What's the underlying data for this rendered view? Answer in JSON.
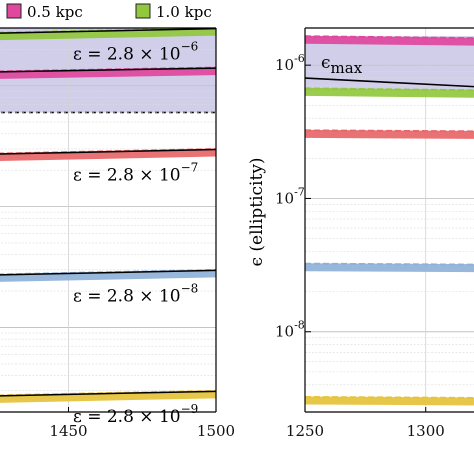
{
  "legend": {
    "items": [
      {
        "label": "0.5 kpc",
        "color": "#e0479e"
      },
      {
        "label": "1.0 kpc",
        "color": "#92c83e"
      }
    ]
  },
  "chart_data": [
    {
      "type": "line",
      "panel": "left",
      "title": "",
      "xlabel": "",
      "ylabel": "",
      "xlim": [
        1420,
        1500
      ],
      "x_ticks": [
        1450,
        1500
      ],
      "x_tick_labels": [
        "1450",
        "1500"
      ],
      "y_scale": "log",
      "ylim": [
        2e-09,
        3e-06
      ],
      "grid": true,
      "band": {
        "from": 6e-07,
        "to": 3e-06,
        "color": "#c9c6e6",
        "lower_edge_style": "dashed"
      },
      "series": [
        {
          "color": "#92c83e",
          "x": [
            1420,
            1500
          ],
          "y": [
            2.55e-06,
            2.8e-06
          ]
        },
        {
          "color": "#e0479e",
          "x": [
            1420,
            1500
          ],
          "y": [
            1.22e-06,
            1.32e-06
          ]
        },
        {
          "color": "#e8676a",
          "x": [
            1420,
            1500
          ],
          "y": [
            2.55e-07,
            2.8e-07
          ]
        },
        {
          "color": "#8fb1d8",
          "x": [
            1420,
            1500
          ],
          "y": [
            2.55e-08,
            2.8e-08
          ]
        },
        {
          "color": "#e6c33a",
          "x": [
            1420,
            1500
          ],
          "y": [
            2.55e-09,
            2.8e-09
          ]
        }
      ],
      "annotations": [
        {
          "base": "ε = 2.8 × 10",
          "exp": "−6"
        },
        {
          "base": "ε = 2.8 × 10",
          "exp": "−7"
        },
        {
          "base": "ε = 2.8 × 10",
          "exp": "−8"
        },
        {
          "base": "ε = 2.8 × 10",
          "exp": "−9"
        }
      ]
    },
    {
      "type": "line",
      "panel": "right",
      "title": "",
      "xlabel": "",
      "ylabel": "ϵ (ellipticity)",
      "xlim": [
        1250,
        1320
      ],
      "x_ticks": [
        1250,
        1300
      ],
      "x_tick_labels": [
        "1250",
        "1300"
      ],
      "y_scale": "log",
      "ylim": [
        2.5e-09,
        1.9e-06
      ],
      "y_ticks": [
        {
          "value": 1e-06,
          "base": "10",
          "exp": "-6"
        },
        {
          "value": 1e-07,
          "base": "10",
          "exp": "-7"
        },
        {
          "value": 1e-08,
          "base": "10",
          "exp": "-8"
        }
      ],
      "grid": true,
      "band": {
        "from": 6.5e-07,
        "to": 1.65e-06,
        "color": "#c9c6e6"
      },
      "epsilon_max_line": {
        "x": [
          1250,
          1320
        ],
        "y": [
          8e-07,
          6.9e-07
        ]
      },
      "annotation": {
        "text": "ϵ",
        "subscript": "max"
      },
      "series": [
        {
          "color": "#e0479e",
          "x": [
            1250,
            1320
          ],
          "y": [
            1.55e-06,
            1.5e-06
          ]
        },
        {
          "color": "#92c83e",
          "x": [
            1250,
            1320
          ],
          "y": [
            6.3e-07,
            6.1e-07
          ]
        },
        {
          "color": "#e8676a",
          "x": [
            1250,
            1320
          ],
          "y": [
            3.05e-07,
            3e-07
          ]
        },
        {
          "color": "#8fb1d8",
          "x": [
            1250,
            1320
          ],
          "y": [
            3.05e-08,
            3e-08
          ]
        },
        {
          "color": "#e6c33a",
          "x": [
            1250,
            1320
          ],
          "y": [
            3.05e-09,
            3e-09
          ]
        }
      ]
    }
  ]
}
